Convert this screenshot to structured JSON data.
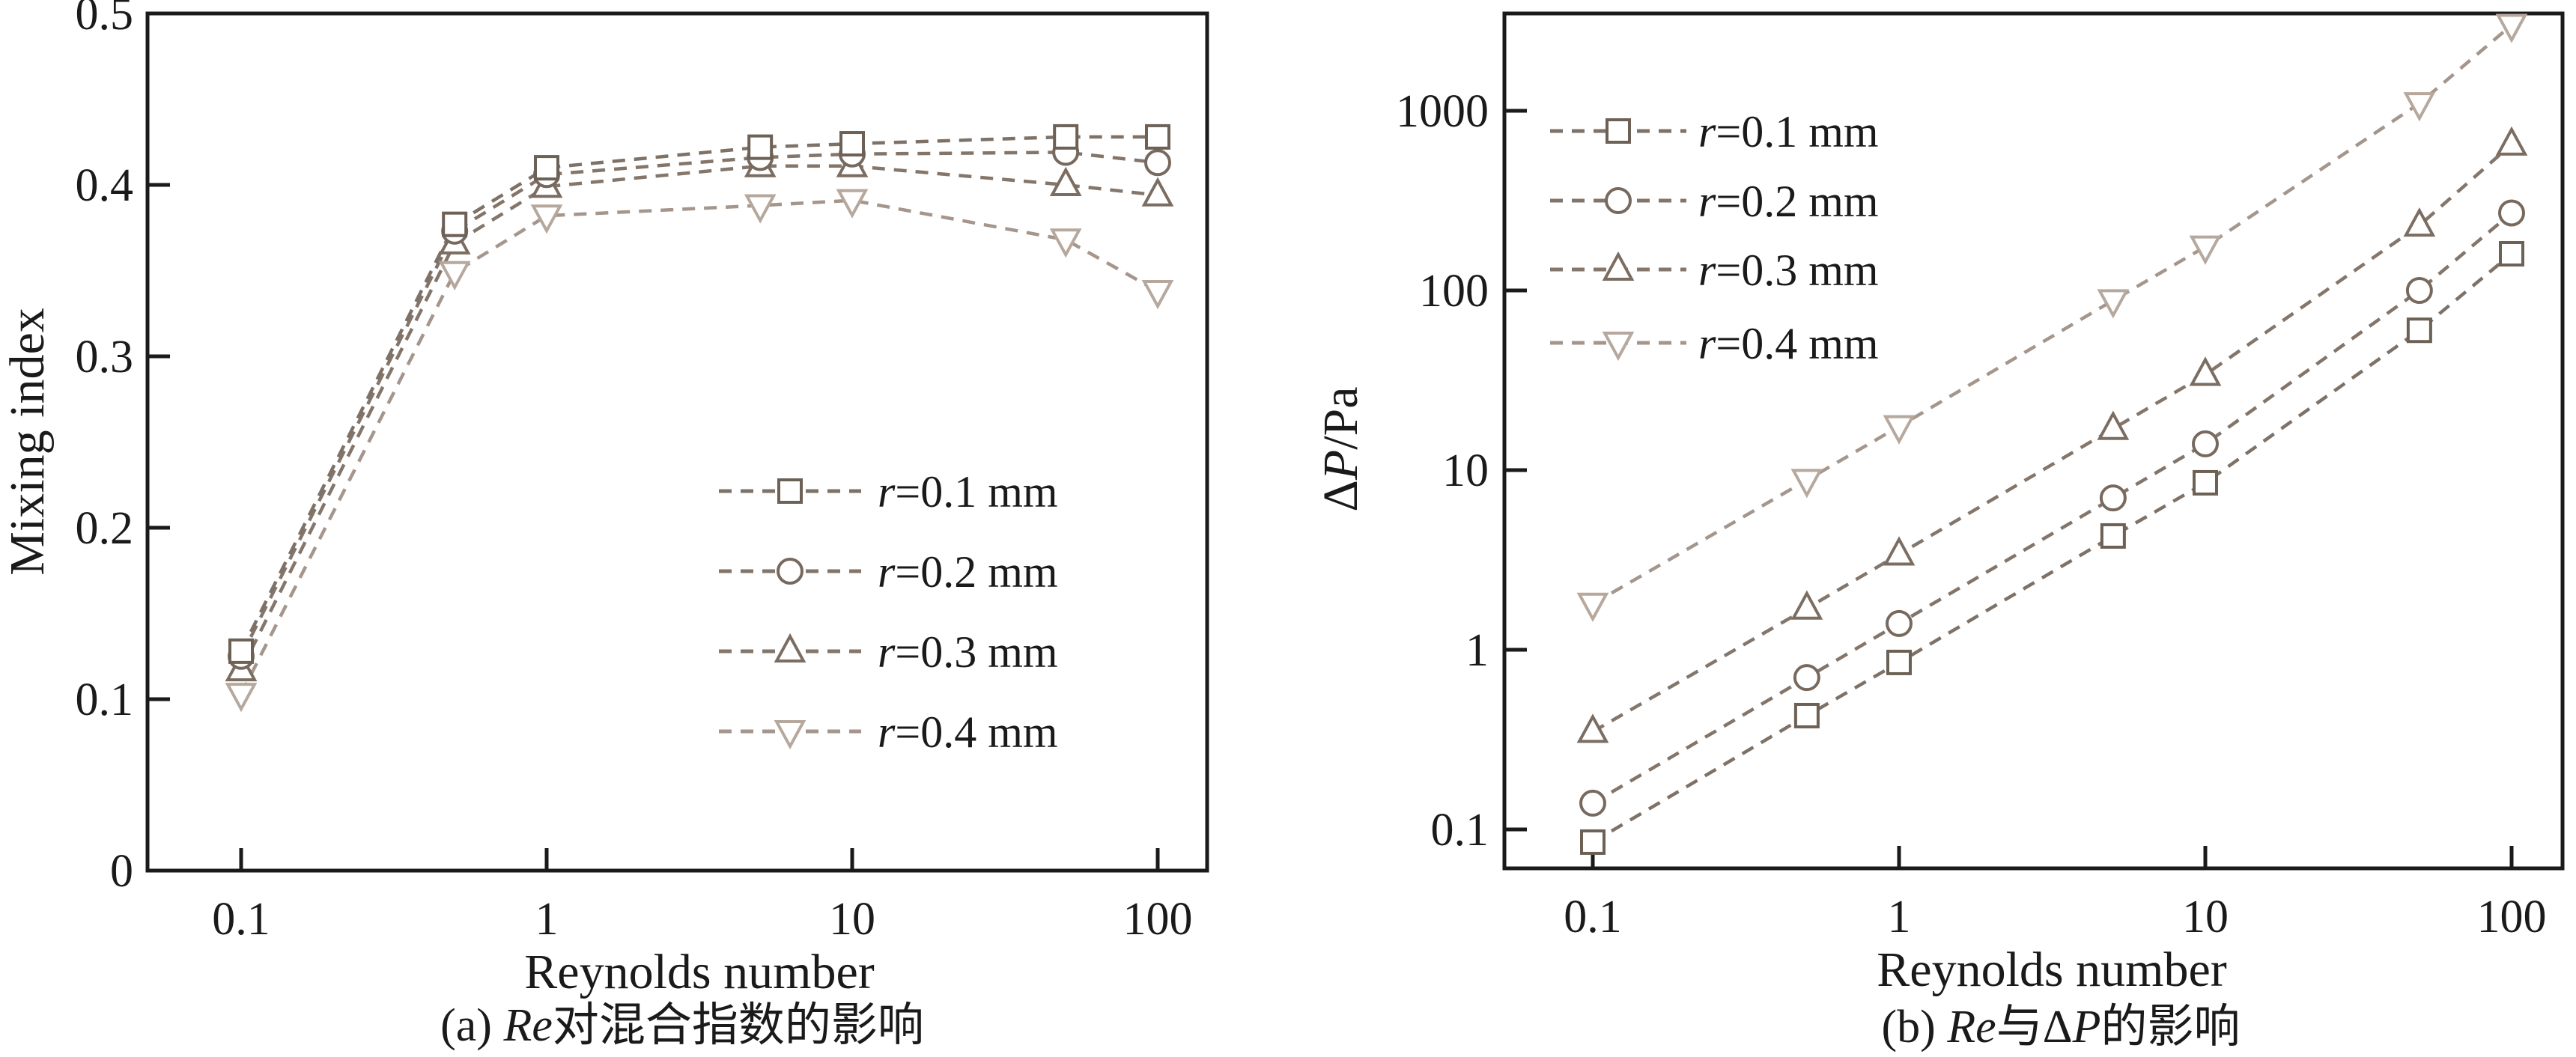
{
  "page": {
    "background": "#ffffff",
    "frame_color": "#1a1a1a"
  },
  "chart_data": [
    {
      "type": "line",
      "panel": "a",
      "caption_segments": [
        {
          "t": "(a) "
        },
        {
          "t": "Re",
          "i": true
        },
        {
          "t": "对混合指数的影响"
        }
      ],
      "xlabel": "Reynolds number",
      "ylabel_segments": [
        {
          "t": "Mixing index"
        }
      ],
      "x_scale": "log",
      "y_scale": "linear",
      "xlim": [
        0.05,
        145
      ],
      "ylim": [
        0,
        0.5
      ],
      "xticks": [
        {
          "v": 0.1,
          "label": "0.1"
        },
        {
          "v": 1,
          "label": "1"
        },
        {
          "v": 10,
          "label": "10"
        },
        {
          "v": 100,
          "label": "100"
        }
      ],
      "yticks": [
        {
          "v": 0,
          "label": "0"
        },
        {
          "v": 0.1,
          "label": "0.1"
        },
        {
          "v": 0.2,
          "label": "0.2"
        },
        {
          "v": 0.3,
          "label": "0.3"
        },
        {
          "v": 0.4,
          "label": "0.4"
        },
        {
          "v": 0.5,
          "label": "0.5"
        }
      ],
      "x": [
        0.1,
        0.5,
        1,
        5,
        10,
        50,
        100
      ],
      "grid": false,
      "line_style": "dashed",
      "legend_position": "inside-center-right",
      "series": [
        {
          "name": "r=0.1 mm",
          "name_segments": [
            {
              "t": "r",
              "i": true
            },
            {
              "t": "=0.1 mm"
            }
          ],
          "marker": "square",
          "line_color": "#7e7268",
          "marker_color": "#6d6055",
          "values": [
            0.128,
            0.377,
            0.41,
            0.422,
            0.424,
            0.428,
            0.428
          ]
        },
        {
          "name": "r=0.2 mm",
          "name_segments": [
            {
              "t": "r",
              "i": true
            },
            {
              "t": "=0.2 mm"
            }
          ],
          "marker": "circle",
          "line_color": "#83756a",
          "marker_color": "#77695e",
          "values": [
            0.125,
            0.373,
            0.406,
            0.416,
            0.418,
            0.419,
            0.413
          ]
        },
        {
          "name": "r=0.3 mm",
          "name_segments": [
            {
              "t": "r",
              "i": true
            },
            {
              "t": "=0.3 mm"
            }
          ],
          "marker": "triangle-up",
          "line_color": "#84766b",
          "marker_color": "#7b6d62",
          "values": [
            0.117,
            0.366,
            0.399,
            0.411,
            0.411,
            0.4,
            0.394
          ]
        },
        {
          "name": "r=0.4 mm",
          "name_segments": [
            {
              "t": "r",
              "i": true
            },
            {
              "t": "=0.4 mm"
            }
          ],
          "marker": "triangle-down",
          "line_color": "#a4968c",
          "marker_color": "#b7a89d",
          "values": [
            0.103,
            0.349,
            0.382,
            0.388,
            0.391,
            0.368,
            0.338
          ]
        }
      ]
    },
    {
      "type": "line",
      "panel": "b",
      "caption_segments": [
        {
          "t": "(b) "
        },
        {
          "t": "Re",
          "i": true
        },
        {
          "t": "与Δ"
        },
        {
          "t": "P",
          "i": true
        },
        {
          "t": "的影响"
        }
      ],
      "xlabel": "Reynolds number",
      "ylabel_segments": [
        {
          "t": "Δ"
        },
        {
          "t": "P",
          "i": true
        },
        {
          "t": "/Pa"
        }
      ],
      "x_scale": "log",
      "y_scale": "log",
      "xlim": [
        0.05,
        145
      ],
      "ylim": [
        0.06,
        3500
      ],
      "xticks": [
        {
          "v": 0.1,
          "label": "0.1"
        },
        {
          "v": 1,
          "label": "1"
        },
        {
          "v": 10,
          "label": "10"
        },
        {
          "v": 100,
          "label": "100"
        }
      ],
      "yticks": [
        {
          "v": 0.1,
          "label": "0.1"
        },
        {
          "v": 1,
          "label": "1"
        },
        {
          "v": 10,
          "label": "10"
        },
        {
          "v": 100,
          "label": "100"
        },
        {
          "v": 1000,
          "label": "1000"
        }
      ],
      "x": [
        0.1,
        0.5,
        1,
        5,
        10,
        50,
        100
      ],
      "grid": false,
      "line_style": "dashed",
      "legend_position": "inside-top-left",
      "series": [
        {
          "name": "r=0.1 mm",
          "name_segments": [
            {
              "t": "r",
              "i": true
            },
            {
              "t": "=0.1 mm"
            }
          ],
          "marker": "square",
          "line_color": "#7e7268",
          "marker_color": "#6d6055",
          "values": [
            0.085,
            0.43,
            0.85,
            4.3,
            8.5,
            60,
            160
          ]
        },
        {
          "name": "r=0.2 mm",
          "name_segments": [
            {
              "t": "r",
              "i": true
            },
            {
              "t": "=0.2 mm"
            }
          ],
          "marker": "circle",
          "line_color": "#83756a",
          "marker_color": "#77695e",
          "values": [
            0.14,
            0.7,
            1.4,
            7.0,
            14,
            100,
            270
          ]
        },
        {
          "name": "r=0.3 mm",
          "name_segments": [
            {
              "t": "r",
              "i": true
            },
            {
              "t": "=0.3 mm"
            }
          ],
          "marker": "triangle-up",
          "line_color": "#84766b",
          "marker_color": "#7b6d62",
          "values": [
            0.35,
            1.7,
            3.4,
            17,
            34,
            230,
            650
          ]
        },
        {
          "name": "r=0.4 mm",
          "name_segments": [
            {
              "t": "r",
              "i": true
            },
            {
              "t": "=0.4 mm"
            }
          ],
          "marker": "triangle-down",
          "line_color": "#a4968c",
          "marker_color": "#b7a89d",
          "values": [
            1.8,
            8.8,
            17.5,
            88,
            175,
            1100,
            3000
          ]
        }
      ]
    }
  ]
}
